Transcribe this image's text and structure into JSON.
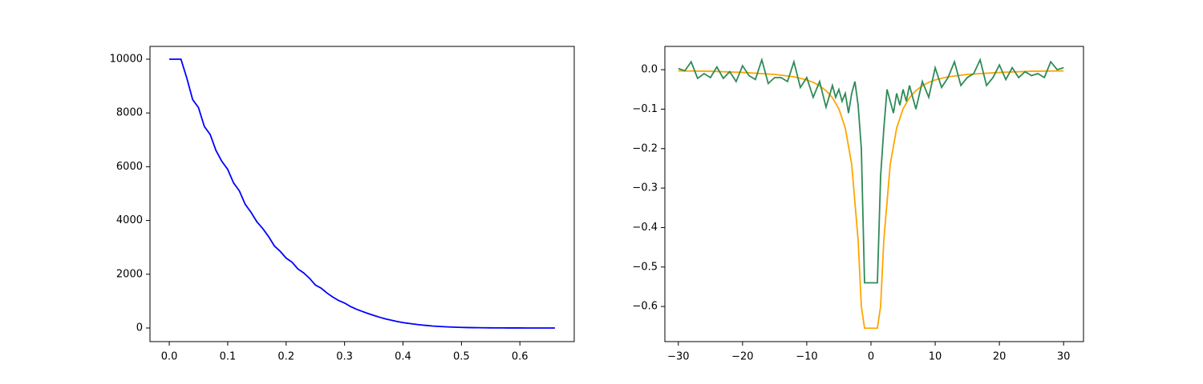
{
  "chart_data": [
    {
      "type": "line",
      "xlim": [
        -0.033,
        0.693
      ],
      "ylim": [
        -506,
        10476
      ],
      "xticks": [
        {
          "value": 0,
          "label": "0.0"
        },
        0.1,
        0.2,
        0.3,
        0.4,
        0.5,
        0.6
      ],
      "yticks": [
        0,
        2000,
        4000,
        6000,
        8000,
        10000
      ],
      "grid": false,
      "series": [
        {
          "color": "#0000ff",
          "x": [
            0,
            0.01,
            0.02,
            0.03,
            0.04,
            0.05,
            0.06,
            0.07,
            0.08,
            0.09,
            0.1,
            0.11,
            0.12,
            0.13,
            0.14,
            0.15,
            0.16,
            0.17,
            0.18,
            0.19,
            0.2,
            0.21,
            0.22,
            0.23,
            0.24,
            0.25,
            0.26,
            0.27,
            0.28,
            0.29,
            0.3,
            0.31,
            0.32,
            0.33,
            0.34,
            0.35,
            0.36,
            0.37,
            0.38,
            0.39,
            0.4,
            0.41,
            0.42,
            0.43,
            0.44,
            0.45,
            0.46,
            0.47,
            0.48,
            0.49,
            0.5,
            0.51,
            0.52,
            0.53,
            0.54,
            0.55,
            0.56,
            0.57,
            0.58,
            0.59,
            0.6,
            0.61,
            0.62,
            0.63,
            0.64,
            0.65,
            0.66
          ],
          "values": [
            10000,
            10000,
            10000,
            9300,
            8500,
            8200,
            7500,
            7200,
            6600,
            6200,
            5900,
            5400,
            5100,
            4600,
            4300,
            3950,
            3700,
            3400,
            3050,
            2850,
            2600,
            2450,
            2200,
            2050,
            1850,
            1600,
            1480,
            1300,
            1150,
            1020,
            930,
            800,
            700,
            620,
            540,
            470,
            400,
            340,
            290,
            240,
            200,
            170,
            140,
            115,
            95,
            75,
            60,
            48,
            38,
            30,
            22,
            17,
            13,
            10,
            7,
            5,
            4,
            3,
            2,
            1.5,
            1,
            0.8,
            0.6,
            0.4,
            0.3,
            0.2,
            0.1
          ]
        }
      ]
    },
    {
      "type": "line",
      "xlim": [
        -32.1,
        33.1
      ],
      "ylim": [
        -0.689,
        0.059
      ],
      "xticks": [
        {
          "value": -30,
          "label": "−30"
        },
        {
          "value": -20,
          "label": "−20"
        },
        {
          "value": -10,
          "label": "−10"
        },
        0,
        10,
        20,
        30
      ],
      "yticks": [
        {
          "value": -0.6,
          "label": "−0.6"
        },
        {
          "value": -0.5,
          "label": "−0.5"
        },
        {
          "value": -0.4,
          "label": "−0.4"
        },
        {
          "value": -0.3,
          "label": "−0.3"
        },
        {
          "value": -0.2,
          "label": "−0.2"
        },
        {
          "value": -0.1,
          "label": "−0.1"
        },
        {
          "value": 0,
          "label": "0.0"
        }
      ],
      "grid": false,
      "series": [
        {
          "color": "#ffa500",
          "x": [
            -30,
            -25,
            -20,
            -15,
            -12,
            -10,
            -9,
            -8,
            -7,
            -6,
            -5,
            -4,
            -3,
            -2,
            -1.5,
            -1,
            0,
            1,
            1.5,
            2,
            3,
            4,
            5,
            6,
            7,
            8,
            9,
            10,
            12,
            15,
            20,
            25,
            30
          ],
          "values": [
            -0.003,
            -0.004,
            -0.007,
            -0.012,
            -0.018,
            -0.026,
            -0.032,
            -0.041,
            -0.053,
            -0.071,
            -0.099,
            -0.148,
            -0.24,
            -0.432,
            -0.6,
            -0.655,
            -0.655,
            -0.655,
            -0.6,
            -0.432,
            -0.24,
            -0.148,
            -0.099,
            -0.071,
            -0.053,
            -0.041,
            -0.032,
            -0.026,
            -0.018,
            -0.012,
            -0.007,
            -0.004,
            -0.003
          ]
        },
        {
          "color": "#2e8b57",
          "x": [
            -30,
            -29,
            -28,
            -27,
            -26,
            -25,
            -24,
            -23,
            -22,
            -21,
            -20,
            -19,
            -18,
            -17,
            -16,
            -15,
            -14,
            -13,
            -12,
            -11,
            -10,
            -9,
            -8,
            -7,
            -6,
            -5.5,
            -5,
            -4.5,
            -4,
            -3.5,
            -3,
            -2.5,
            -2,
            -1.5,
            -1,
            -0.5,
            0,
            0.5,
            1,
            1.5,
            2,
            2.5,
            3,
            3.5,
            4,
            4.5,
            5,
            5.5,
            6,
            7,
            8,
            9,
            10,
            11,
            12,
            13,
            14,
            15,
            16,
            17,
            18,
            19,
            20,
            21,
            22,
            23,
            24,
            25,
            26,
            27,
            28,
            29,
            30
          ],
          "values": [
            0.003,
            -0.003,
            0.02,
            -0.022,
            -0.01,
            -0.02,
            0.007,
            -0.022,
            -0.005,
            -0.03,
            0.01,
            -0.015,
            -0.025,
            0.025,
            -0.035,
            -0.02,
            -0.02,
            -0.03,
            0.02,
            -0.045,
            -0.02,
            -0.07,
            -0.03,
            -0.095,
            -0.04,
            -0.07,
            -0.05,
            -0.08,
            -0.06,
            -0.11,
            -0.06,
            -0.03,
            -0.09,
            -0.2,
            -0.54,
            -0.54,
            -0.54,
            -0.54,
            -0.54,
            -0.27,
            -0.15,
            -0.05,
            -0.08,
            -0.11,
            -0.06,
            -0.09,
            -0.05,
            -0.08,
            -0.04,
            -0.1,
            -0.03,
            -0.07,
            0.005,
            -0.045,
            -0.02,
            0.02,
            -0.04,
            -0.02,
            -0.01,
            0.025,
            -0.04,
            -0.02,
            0.012,
            -0.025,
            0.005,
            -0.02,
            -0.005,
            -0.015,
            -0.01,
            -0.02,
            0.02,
            0,
            0.005
          ]
        }
      ]
    }
  ]
}
